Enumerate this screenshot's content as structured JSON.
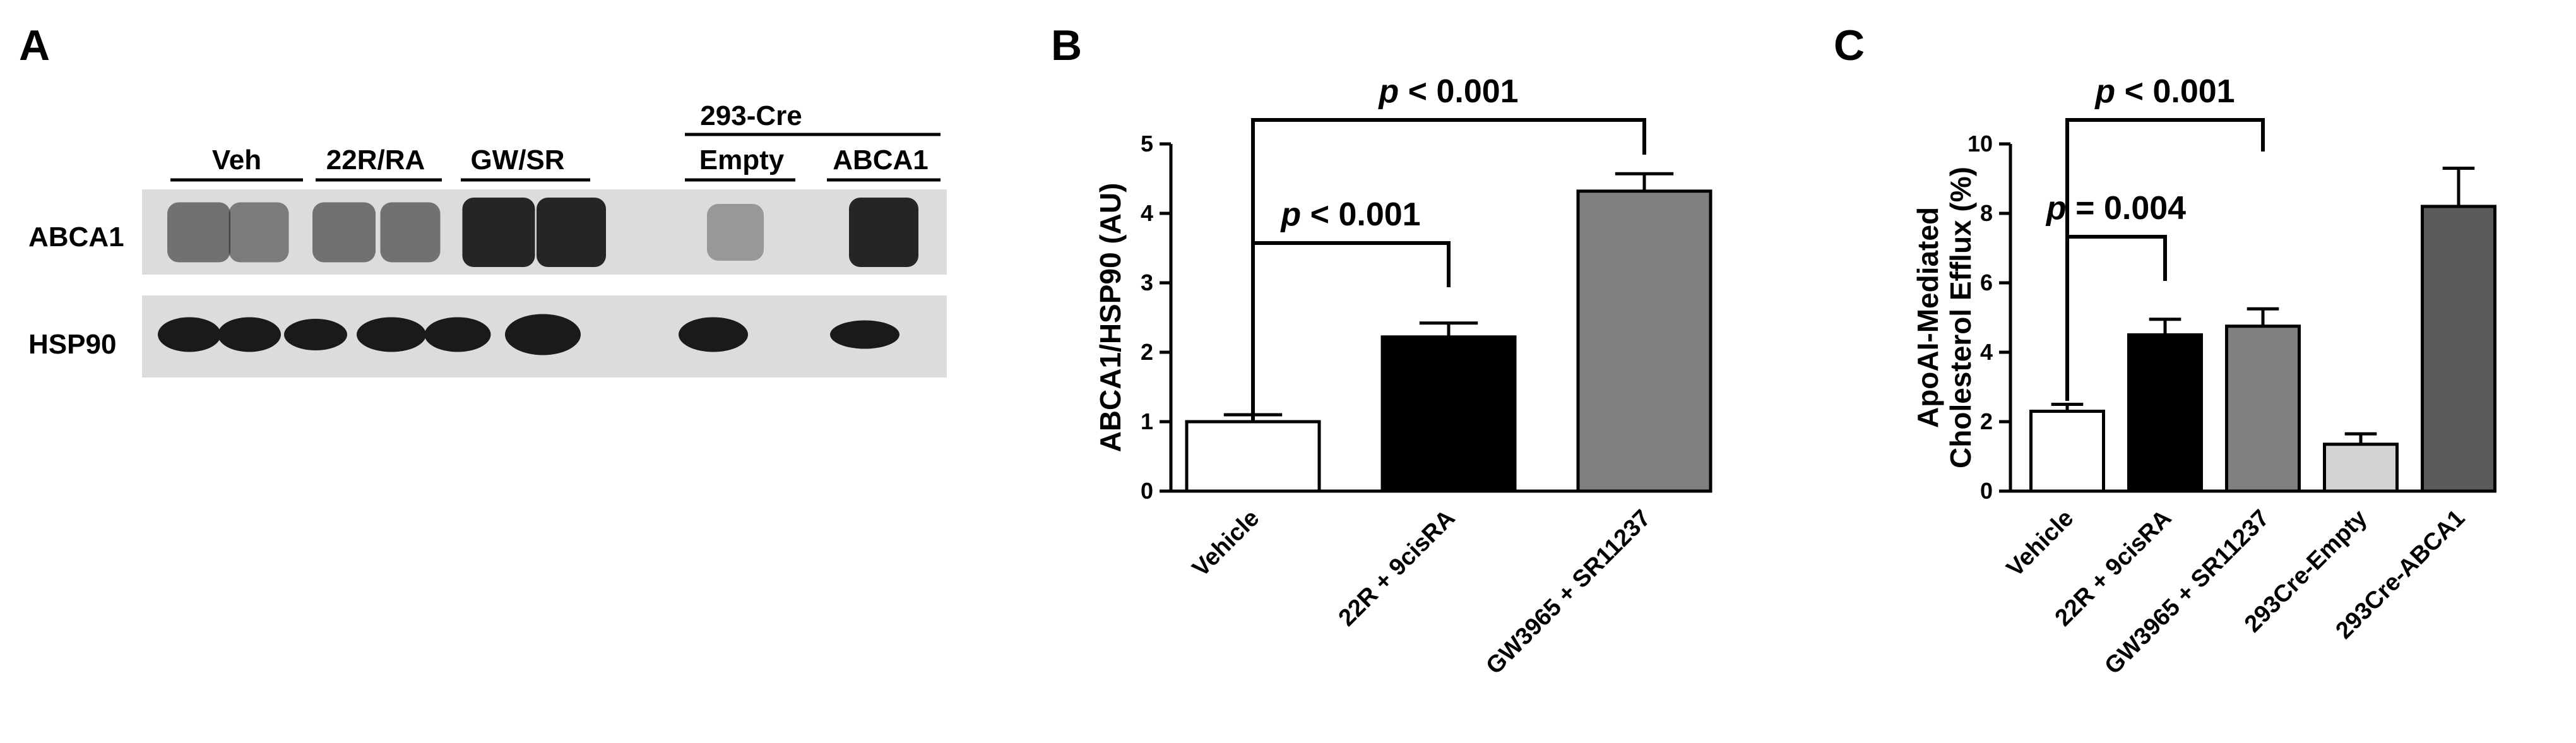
{
  "panels": {
    "a": {
      "letter": "A"
    },
    "b": {
      "letter": "B"
    },
    "c": {
      "letter": "C"
    }
  },
  "blot": {
    "group_header": "293-Cre",
    "groups": [
      "Veh",
      "22R/RA",
      "GW/SR",
      "Empty",
      "ABCA1"
    ],
    "rows": [
      "ABCA1",
      "HSP90"
    ],
    "colors": {
      "band": "#1a1a1a",
      "background": "#dcdcdc"
    }
  },
  "chart_data": [
    {
      "type": "bar",
      "panel": "B",
      "categories": [
        "Vehicle",
        "22R + 9cisRA",
        "GW3965 + SR11237"
      ],
      "values": [
        1.0,
        2.22,
        4.32
      ],
      "errors": [
        0.1,
        0.2,
        0.25
      ],
      "bar_colors": [
        "#ffffff",
        "#000000",
        "#808080"
      ],
      "ylabel": "ABCA1/HSP90 (AU)",
      "ylim": [
        0,
        5
      ],
      "yticks": [
        0,
        1,
        2,
        3,
        4,
        5
      ],
      "annotations": [
        {
          "p": "p",
          "text": " < 0.001",
          "from": 0,
          "to": 2
        },
        {
          "p": "p",
          "text": " < 0.001",
          "from": 0,
          "to": 1
        }
      ]
    },
    {
      "type": "bar",
      "panel": "C",
      "categories": [
        "Vehicle",
        "22R + 9cisRA",
        "GW3965 + SR11237",
        "293Cre-Empty",
        "293Cre-ABCA1"
      ],
      "values": [
        2.3,
        4.5,
        4.75,
        1.35,
        8.2
      ],
      "errors": [
        0.2,
        0.45,
        0.5,
        0.3,
        1.1
      ],
      "bar_colors": [
        "#ffffff",
        "#000000",
        "#808080",
        "#d3d3d3",
        "#5a5a5a"
      ],
      "ylabel": [
        "ApoAI-Mediated",
        "Cholesterol Efflux (%)"
      ],
      "ylim": [
        0,
        10
      ],
      "yticks": [
        0,
        2,
        4,
        6,
        8,
        10
      ],
      "annotations": [
        {
          "p": "p",
          "text": " < 0.001",
          "from": 0,
          "to": 2
        },
        {
          "p": "p",
          "text": " = 0.004",
          "from": 0,
          "to": 1
        }
      ]
    }
  ]
}
